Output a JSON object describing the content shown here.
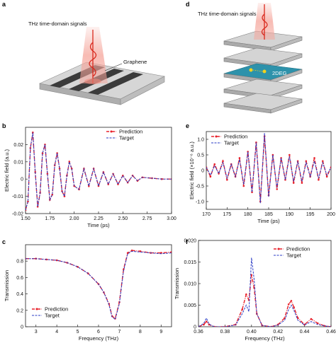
{
  "panels": {
    "a": {
      "letter": "a",
      "signal_label": "THz time-domain signals",
      "material_label": "Graphene"
    },
    "d": {
      "letter": "d",
      "signal_label": "THz time-domain signals",
      "layer_label": "2DEG"
    }
  },
  "colors": {
    "prediction": "#e8212b",
    "target": "#2a3bc4",
    "beam": "#f5a59b",
    "layer_accent": "#2d92ab"
  },
  "chart_data": [
    {
      "panel": "b",
      "type": "line",
      "xlabel": "Time (ps)",
      "ylabel": "Electric field (a.u.)",
      "xlim": [
        1.5,
        3.0
      ],
      "ylim": [
        -0.02,
        0.03
      ],
      "xticks": [
        "1.50",
        "1.75",
        "2.00",
        "2.25",
        "2.50",
        "2.75",
        "3.00"
      ],
      "yticks": [
        "-0.02",
        "-0.01",
        "0",
        "0.01",
        "0.02"
      ],
      "legend": "top-right",
      "series": [
        {
          "name": "Prediction",
          "style": "red dash-dot with markers",
          "x": [
            1.5,
            1.525,
            1.55,
            1.575,
            1.6,
            1.625,
            1.65,
            1.675,
            1.7,
            1.725,
            1.75,
            1.775,
            1.8,
            1.825,
            1.85,
            1.875,
            1.9,
            1.925,
            1.95,
            1.975,
            2.0,
            2.05,
            2.1,
            2.15,
            2.2,
            2.25,
            2.3,
            2.35,
            2.4,
            2.45,
            2.5,
            2.55,
            2.6,
            2.65,
            2.7,
            2.8,
            2.9,
            3.0
          ],
          "values": [
            -0.018,
            -0.013,
            0.018,
            0.027,
            0.004,
            -0.016,
            -0.008,
            0.015,
            0.02,
            0.003,
            -0.012,
            -0.009,
            0.008,
            0.015,
            0.006,
            -0.007,
            -0.01,
            0.002,
            0.01,
            0.006,
            -0.004,
            -0.006,
            0.006,
            -0.004,
            0.006,
            -0.004,
            0.004,
            -0.003,
            0.003,
            -0.003,
            0.002,
            -0.002,
            0.002,
            -0.001,
            0.001,
            0.0005,
            0.0,
            0.0
          ]
        },
        {
          "name": "Target",
          "style": "blue dashed",
          "x": [
            1.5,
            1.525,
            1.55,
            1.575,
            1.6,
            1.625,
            1.65,
            1.675,
            1.7,
            1.725,
            1.75,
            1.775,
            1.8,
            1.825,
            1.85,
            1.875,
            1.9,
            1.925,
            1.95,
            1.975,
            2.0,
            2.05,
            2.1,
            2.15,
            2.2,
            2.25,
            2.3,
            2.35,
            2.4,
            2.45,
            2.5,
            2.55,
            2.6,
            2.65,
            2.7,
            2.8,
            2.9,
            3.0
          ],
          "values": [
            -0.018,
            -0.013,
            0.018,
            0.027,
            0.004,
            -0.016,
            -0.008,
            0.015,
            0.02,
            0.003,
            -0.012,
            -0.009,
            0.008,
            0.015,
            0.006,
            -0.007,
            -0.01,
            0.002,
            0.01,
            0.006,
            -0.004,
            -0.006,
            0.006,
            -0.004,
            0.006,
            -0.004,
            0.004,
            -0.003,
            0.003,
            -0.003,
            0.002,
            -0.002,
            0.002,
            -0.001,
            0.001,
            0.0005,
            0.0,
            0.0
          ]
        }
      ]
    },
    {
      "panel": "e",
      "type": "line",
      "xlabel": "Time (ps)",
      "ylabel": "Electric field (×10⁻⁶ a.u.)",
      "xlim": [
        170,
        200
      ],
      "ylim": [
        -1.25,
        1.25
      ],
      "xticks": [
        "170",
        "175",
        "180",
        "185",
        "190",
        "195",
        "200"
      ],
      "yticks": [
        "-1.0",
        "-0.5",
        "0",
        "0.5",
        "1.0"
      ],
      "legend": "top-left",
      "series": [
        {
          "name": "Prediction",
          "style": "red dash-dot with markers",
          "x": [
            170,
            171,
            172,
            173,
            174,
            175,
            176,
            177,
            178,
            179,
            180,
            181,
            182,
            183,
            184,
            185,
            186,
            187,
            188,
            189,
            190,
            191,
            192,
            193,
            194,
            195,
            196,
            197,
            198,
            199,
            200
          ],
          "values": [
            0.1,
            -0.2,
            0.2,
            -0.1,
            0.3,
            -0.3,
            0.2,
            -0.2,
            0.4,
            -0.5,
            0.6,
            -0.7,
            0.9,
            -1.0,
            1.1,
            -0.8,
            0.5,
            -0.6,
            0.4,
            -0.3,
            0.5,
            -0.4,
            0.3,
            -0.4,
            0.3,
            -0.2,
            0.4,
            -0.3,
            0.3,
            -0.2,
            0.1
          ]
        },
        {
          "name": "Target",
          "style": "blue dashed",
          "x": [
            170,
            171,
            172,
            173,
            174,
            175,
            176,
            177,
            178,
            179,
            180,
            181,
            182,
            183,
            184,
            185,
            186,
            187,
            188,
            189,
            190,
            191,
            192,
            193,
            194,
            195,
            196,
            197,
            198,
            199,
            200
          ],
          "values": [
            0.1,
            -0.15,
            0.15,
            -0.1,
            0.25,
            -0.25,
            0.2,
            -0.2,
            0.35,
            -0.45,
            0.6,
            -0.7,
            0.9,
            -1.05,
            1.2,
            -0.85,
            0.5,
            -0.55,
            0.4,
            -0.3,
            0.45,
            -0.35,
            0.3,
            -0.35,
            0.25,
            -0.2,
            0.3,
            -0.25,
            0.25,
            -0.15,
            0.1
          ]
        }
      ]
    },
    {
      "panel": "c",
      "type": "line",
      "xlabel": "Frequency (THz)",
      "ylabel": "Transmission",
      "xlim": [
        2.5,
        9.5
      ],
      "ylim": [
        0.0,
        1.0
      ],
      "xticks": [
        "3",
        "4",
        "5",
        "6",
        "7",
        "8",
        "9"
      ],
      "yticks": [
        "0",
        "0.2",
        "0.4",
        "0.6",
        "0.8"
      ],
      "legend": "bottom-left",
      "series": [
        {
          "name": "Prediction",
          "style": "red dash-dot with markers",
          "x": [
            2.5,
            3.0,
            3.5,
            4.0,
            4.5,
            5.0,
            5.5,
            6.0,
            6.25,
            6.5,
            6.65,
            6.8,
            7.0,
            7.2,
            7.4,
            7.6,
            8.0,
            8.5,
            9.0,
            9.5
          ],
          "values": [
            0.83,
            0.83,
            0.82,
            0.81,
            0.78,
            0.73,
            0.65,
            0.52,
            0.42,
            0.28,
            0.13,
            0.1,
            0.3,
            0.7,
            0.9,
            0.93,
            0.92,
            0.9,
            0.9,
            0.91
          ]
        },
        {
          "name": "Target",
          "style": "blue dashed",
          "x": [
            2.5,
            3.0,
            3.5,
            4.0,
            4.5,
            5.0,
            5.5,
            6.0,
            6.25,
            6.5,
            6.65,
            6.8,
            7.0,
            7.2,
            7.4,
            7.6,
            8.0,
            8.5,
            9.0,
            9.5
          ],
          "values": [
            0.83,
            0.83,
            0.82,
            0.81,
            0.78,
            0.73,
            0.65,
            0.52,
            0.42,
            0.27,
            0.12,
            0.09,
            0.28,
            0.68,
            0.89,
            0.92,
            0.91,
            0.9,
            0.89,
            0.9
          ]
        }
      ]
    },
    {
      "panel": "f",
      "type": "line",
      "xlabel": "Frequency (THz)",
      "ylabel": "Transmission",
      "xlim": [
        0.36,
        0.46
      ],
      "ylim": [
        0.0,
        0.02
      ],
      "xticks": [
        "0.36",
        "0.38",
        "0.40",
        "0.42",
        "0.44",
        "0.46"
      ],
      "yticks": [
        "0",
        "0.005",
        "0.010",
        "0.015",
        "0.020"
      ],
      "legend": "top-right",
      "series": [
        {
          "name": "Prediction",
          "style": "red dash-dot with markers",
          "x": [
            0.36,
            0.364,
            0.366,
            0.368,
            0.372,
            0.38,
            0.388,
            0.393,
            0.396,
            0.398,
            0.4,
            0.402,
            0.404,
            0.408,
            0.415,
            0.42,
            0.425,
            0.428,
            0.43,
            0.432,
            0.435,
            0.44,
            0.445,
            0.45,
            0.455,
            0.46
          ],
          "values": [
            0.0,
            0.0005,
            0.0012,
            0.0005,
            0.0,
            0.0,
            0.0005,
            0.004,
            0.0075,
            0.0062,
            0.012,
            0.009,
            0.003,
            0.0003,
            0.0,
            0.0005,
            0.002,
            0.0052,
            0.006,
            0.0045,
            0.002,
            0.0005,
            0.0018,
            0.0008,
            0.0002,
            0.0
          ]
        },
        {
          "name": "Target",
          "style": "blue dashed",
          "x": [
            0.36,
            0.364,
            0.366,
            0.368,
            0.372,
            0.38,
            0.388,
            0.393,
            0.396,
            0.398,
            0.4,
            0.402,
            0.404,
            0.408,
            0.415,
            0.42,
            0.425,
            0.428,
            0.43,
            0.432,
            0.435,
            0.44,
            0.445,
            0.45,
            0.455,
            0.46
          ],
          "values": [
            0.0,
            0.0008,
            0.002,
            0.0006,
            0.0,
            0.0,
            0.0004,
            0.003,
            0.005,
            0.0035,
            0.016,
            0.011,
            0.003,
            0.0003,
            0.0,
            0.0004,
            0.0015,
            0.004,
            0.005,
            0.0038,
            0.0015,
            0.0004,
            0.0012,
            0.0005,
            0.0002,
            0.0
          ]
        }
      ]
    }
  ]
}
